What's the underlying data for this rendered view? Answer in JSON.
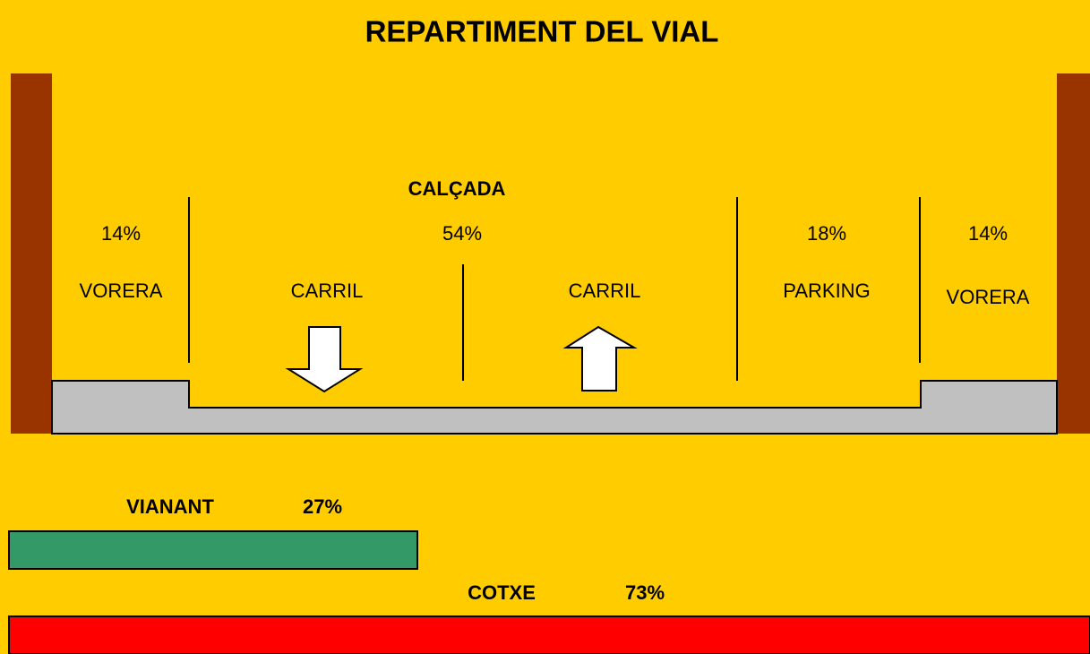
{
  "title": "REPARTIMENT DEL VIAL",
  "calcada": {
    "label": "CALÇADA",
    "percent": "54%"
  },
  "sections": [
    {
      "label": "VORERA",
      "percent": "14%"
    },
    {
      "label": "CARRIL"
    },
    {
      "label": "CARRIL"
    },
    {
      "label": "PARKING",
      "percent": "18%"
    },
    {
      "label": "VORERA",
      "percent": "14%"
    }
  ],
  "modes": [
    {
      "label": "VIANANT",
      "percent": "27%"
    },
    {
      "label": "COTXE",
      "percent": "73%"
    }
  ]
}
